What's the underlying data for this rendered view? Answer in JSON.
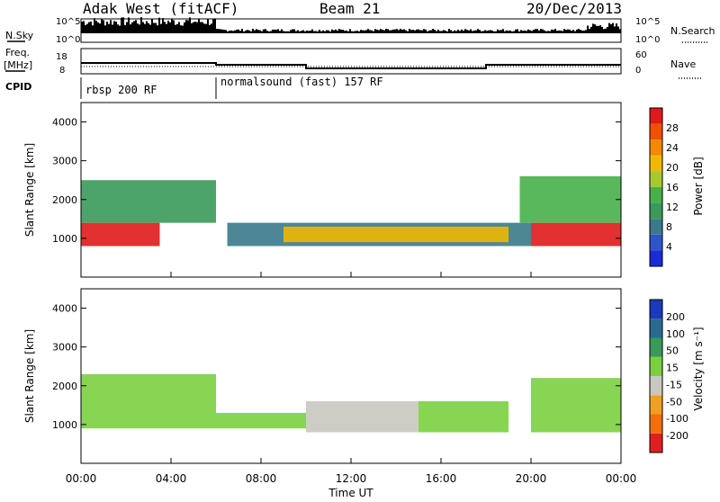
{
  "header": {
    "station": "Adak West (fitACF)",
    "beam": "Beam 21",
    "date": "20/Dec/2013"
  },
  "top_panel": {
    "left_label": "N.Sky",
    "right_label": "N.Search",
    "ticks_left": [
      "10^5",
      "10^0"
    ],
    "ticks_right": [
      "10^5",
      "10^0"
    ]
  },
  "freq_panel": {
    "left_label_1": "Freq.",
    "left_label_2": "[MHz]",
    "ticks_left": [
      "18",
      "8"
    ],
    "ticks_right": [
      "60",
      "0"
    ],
    "right_label": "Nave"
  },
  "cpid": {
    "label": "CPID",
    "segments": [
      {
        "start_hour": 0,
        "end_hour": 6,
        "text": "rbsp 200 RF"
      },
      {
        "start_hour": 6,
        "end_hour": 24,
        "text": "normalsound (fast) 157 RF"
      }
    ]
  },
  "power_panel": {
    "ylabel": "Slant Range [km]",
    "y_ticks": [
      "1000",
      "2000",
      "3000",
      "4000"
    ],
    "colorbar_label": "Power [dB]",
    "colorbar_ticks": [
      "4",
      "8",
      "12",
      "16",
      "20",
      "24",
      "28"
    ],
    "colorbar_colors": [
      "#1a2bd6",
      "#2f55c8",
      "#3a7a8a",
      "#3a9a5a",
      "#48b04a",
      "#a8c830",
      "#f0b800",
      "#f08a00",
      "#f05000",
      "#e01a1a"
    ]
  },
  "velocity_panel": {
    "ylabel": "Slant Range [km]",
    "y_ticks": [
      "1000",
      "2000",
      "3000",
      "4000"
    ],
    "colorbar_label": "Velocity [m s⁻¹]",
    "colorbar_ticks": [
      "200",
      "100",
      "50",
      "15",
      "-15",
      "-50",
      "-100",
      "-200"
    ],
    "colorbar_colors": [
      "#1a3ab8",
      "#2a6a90",
      "#3a9a58",
      "#7ad040",
      "#c8c8c0",
      "#f0a020",
      "#f07010",
      "#e02020"
    ]
  },
  "x_axis": {
    "label": "Time UT",
    "ticks": [
      "00:00",
      "04:00",
      "08:00",
      "12:00",
      "16:00",
      "20:00",
      "00:00"
    ]
  },
  "chart_data": [
    {
      "type": "line",
      "title": "Freq. [MHz]",
      "x_unit": "hour UT",
      "series": [
        {
          "name": "Freq.",
          "x": [
            0,
            6,
            6,
            10,
            10,
            18,
            18,
            24
          ],
          "values": [
            14,
            14,
            13,
            13,
            11,
            11,
            13,
            13
          ]
        }
      ]
    },
    {
      "type": "heatmap",
      "title": "Power [dB]",
      "x_unit": "hour UT",
      "y_unit": "km",
      "x_range": [
        0,
        24
      ],
      "y_range": [
        0,
        4500
      ],
      "value_range": [
        0,
        30
      ],
      "regions": [
        {
          "x": [
            0,
            3.5
          ],
          "y": [
            800,
            1400
          ],
          "value": 28
        },
        {
          "x": [
            0,
            6
          ],
          "y": [
            1400,
            2500
          ],
          "value": 10
        },
        {
          "x": [
            6.5,
            20
          ],
          "y": [
            800,
            1400
          ],
          "value": 6
        },
        {
          "x": [
            9,
            19
          ],
          "y": [
            900,
            1300
          ],
          "value": 18
        },
        {
          "x": [
            20,
            24
          ],
          "y": [
            800,
            1400
          ],
          "value": 28
        },
        {
          "x": [
            19.5,
            24
          ],
          "y": [
            1400,
            2600
          ],
          "value": 12
        }
      ]
    },
    {
      "type": "heatmap",
      "title": "Velocity [m s⁻¹]",
      "x_unit": "hour UT",
      "y_unit": "km",
      "x_range": [
        0,
        24
      ],
      "y_range": [
        0,
        4500
      ],
      "value_range": [
        -200,
        200
      ],
      "regions": [
        {
          "x": [
            0,
            6
          ],
          "y": [
            900,
            2300
          ],
          "value": 0
        },
        {
          "x": [
            6,
            10
          ],
          "y": [
            900,
            1300
          ],
          "value": 30
        },
        {
          "x": [
            10,
            15
          ],
          "y": [
            800,
            1600
          ],
          "value": -50
        },
        {
          "x": [
            15,
            19
          ],
          "y": [
            800,
            1600
          ],
          "value": 30
        },
        {
          "x": [
            20,
            24
          ],
          "y": [
            800,
            2200
          ],
          "value": 0
        }
      ]
    }
  ]
}
